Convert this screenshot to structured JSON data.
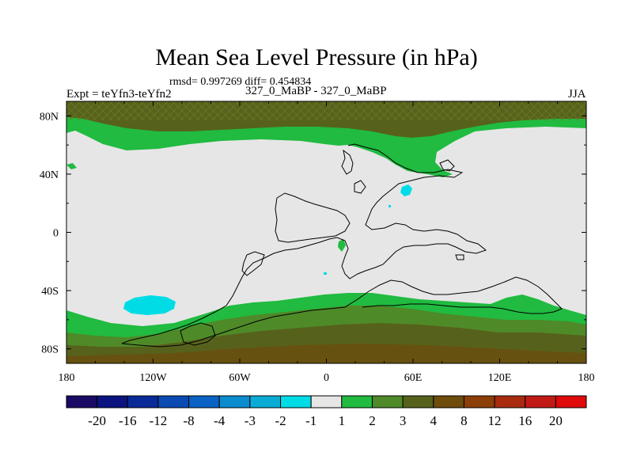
{
  "header": {
    "title": "Mean Sea Level Pressure (in hPa)",
    "stats": "rmsd= 0.997269 diff= 0.454834",
    "expt": "Expt = teYfn3-teYfn2",
    "experiment_label": "327_0_MaBP - 327_0_MaBP",
    "season": "JJA"
  },
  "chart_data": {
    "type": "heatmap",
    "title": "Mean Sea Level Pressure (in hPa)",
    "subtitle": "327_0_MaBP - 327_0_MaBP",
    "variable": "Mean Sea Level Pressure difference",
    "units": "hPa",
    "x": {
      "range": [
        -180,
        180
      ],
      "ticks": [
        -180,
        -120,
        -60,
        0,
        60,
        120,
        180
      ],
      "tick_labels": [
        "180",
        "120W",
        "60W",
        "0",
        "60E",
        "120E",
        "180"
      ]
    },
    "y": {
      "range": [
        -90,
        90
      ],
      "ticks": [
        80,
        40,
        0,
        -40,
        -80
      ],
      "tick_labels": [
        "80N",
        "40N",
        "0",
        "40S",
        "80S"
      ]
    },
    "colorbar": {
      "levels": [
        "-20",
        "-16",
        "-12",
        "-8",
        "-4",
        "-3",
        "-2",
        "-1",
        "1",
        "2",
        "3",
        "4",
        "8",
        "12",
        "16",
        "20"
      ],
      "colors": [
        "#1a0a66",
        "#0a137f",
        "#0a2a9a",
        "#0a4bb3",
        "#0a62c4",
        "#0a8ccf",
        "#0aacd6",
        "#00dce6",
        "#e6e6e6",
        "#20bb40",
        "#4f8a28",
        "#56621c",
        "#6e4c0c",
        "#8c3f08",
        "#a82b10",
        "#c21a14",
        "#e00a0a"
      ]
    },
    "regions": [
      {
        "name": "arctic",
        "band": "2 to 4",
        "lat": [
          70,
          90
        ],
        "lon": [
          -180,
          180
        ]
      },
      {
        "name": "southern-ocean",
        "band": "2 to 8",
        "lat": [
          -90,
          -55
        ],
        "lon": [
          -180,
          180
        ]
      },
      {
        "name": "south-pacific-low",
        "band": "-2 to -1",
        "lat": [
          -52,
          -44
        ],
        "lon": [
          -138,
          -100
        ]
      },
      {
        "name": "central-asia-low",
        "band": "-2 to -1",
        "lat": [
          26,
          34
        ],
        "lon": [
          54,
          60
        ]
      }
    ]
  }
}
